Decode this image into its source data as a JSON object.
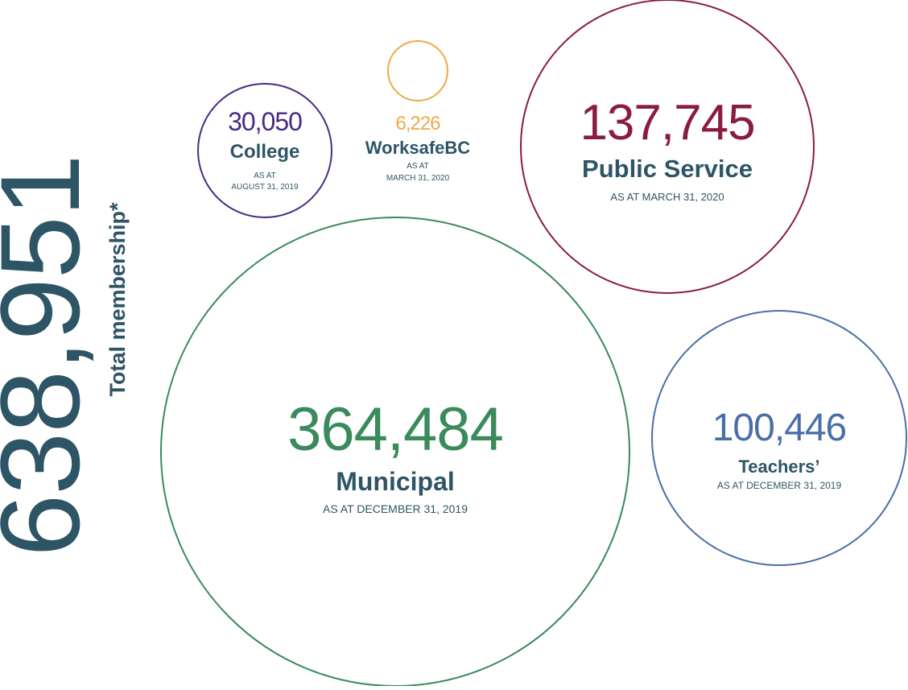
{
  "total": {
    "value": "638,951",
    "label": "Total membership*",
    "color": "#2e5566"
  },
  "chart_data": {
    "type": "bubble",
    "title": "",
    "unit": "members",
    "series": [
      {
        "name": "Municipal",
        "value": 364484,
        "value_label": "364,484",
        "as_at": [
          "AS AT DECEMBER 31, 2019"
        ],
        "color": "#3a8a5c"
      },
      {
        "name": "Public Service",
        "value": 137745,
        "value_label": "137,745",
        "as_at": [
          "AS AT MARCH 31, 2020"
        ],
        "color": "#8a1c3e"
      },
      {
        "name": "Teachers’",
        "value": 100446,
        "value_label": "100,446",
        "as_at": [
          "AS AT DECEMBER 31, 2019"
        ],
        "color": "#4a6fa8"
      },
      {
        "name": "College",
        "value": 30050,
        "value_label": "30,050",
        "as_at": [
          "AS AT",
          "AUGUST 31, 2019"
        ],
        "color": "#4a2a82"
      },
      {
        "name": "WorksafeBC",
        "value": 6226,
        "value_label": "6,226",
        "as_at": [
          "AS AT",
          "MARCH 31, 2020"
        ],
        "color": "#f0a848"
      }
    ],
    "text_color": "#2e5566"
  }
}
